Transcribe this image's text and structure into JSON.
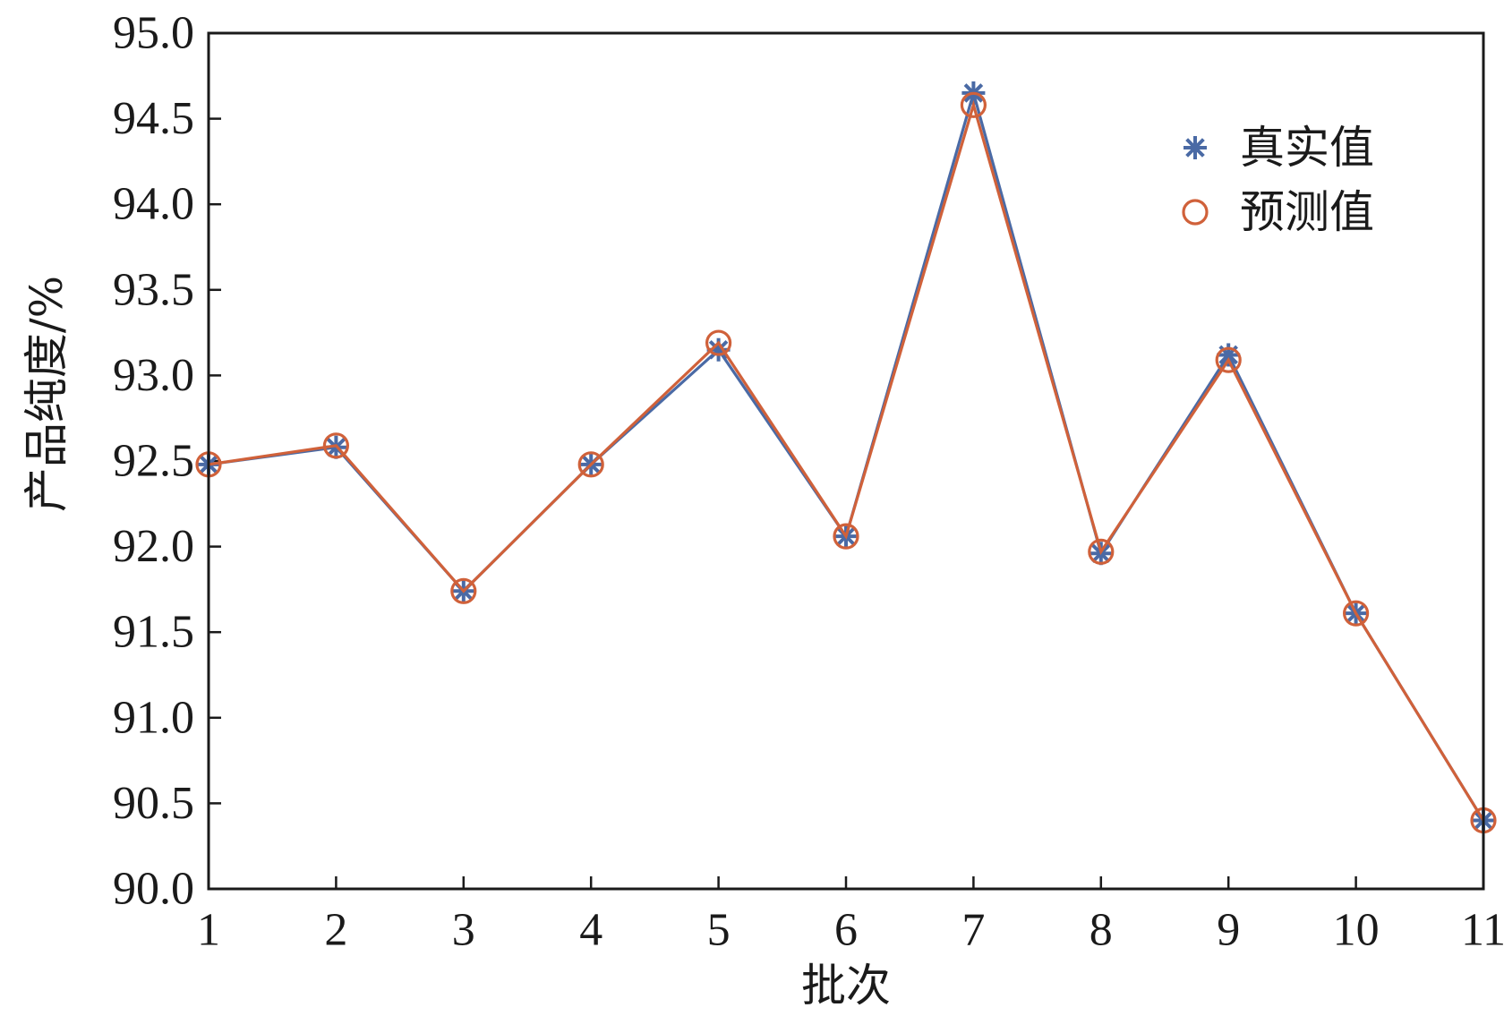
{
  "chart_data": {
    "type": "line",
    "xlabel": "批次",
    "ylabel": "产品纯度/%",
    "xlim": [
      1,
      11
    ],
    "ylim": [
      90.0,
      95.0
    ],
    "xticks": [
      "1",
      "2",
      "3",
      "4",
      "5",
      "6",
      "7",
      "8",
      "9",
      "10",
      "11"
    ],
    "yticks": [
      "90.0",
      "90.5",
      "91.0",
      "91.5",
      "92.0",
      "92.5",
      "93.0",
      "93.5",
      "94.0",
      "94.5",
      "95.0"
    ],
    "grid": false,
    "legend_position": "top-right",
    "x": [
      1,
      2,
      3,
      4,
      5,
      6,
      7,
      8,
      9,
      10,
      11
    ],
    "series": [
      {
        "name": "真实值",
        "marker": "asterisk",
        "color": "#4a6aa5",
        "values": [
          92.48,
          92.58,
          91.74,
          92.48,
          93.15,
          92.06,
          94.65,
          91.96,
          93.12,
          91.61,
          90.4
        ]
      },
      {
        "name": "预测值",
        "marker": "circle",
        "color": "#d0613a",
        "values": [
          92.48,
          92.59,
          91.74,
          92.48,
          93.19,
          92.06,
          94.58,
          91.97,
          93.09,
          91.61,
          90.4
        ]
      }
    ]
  }
}
